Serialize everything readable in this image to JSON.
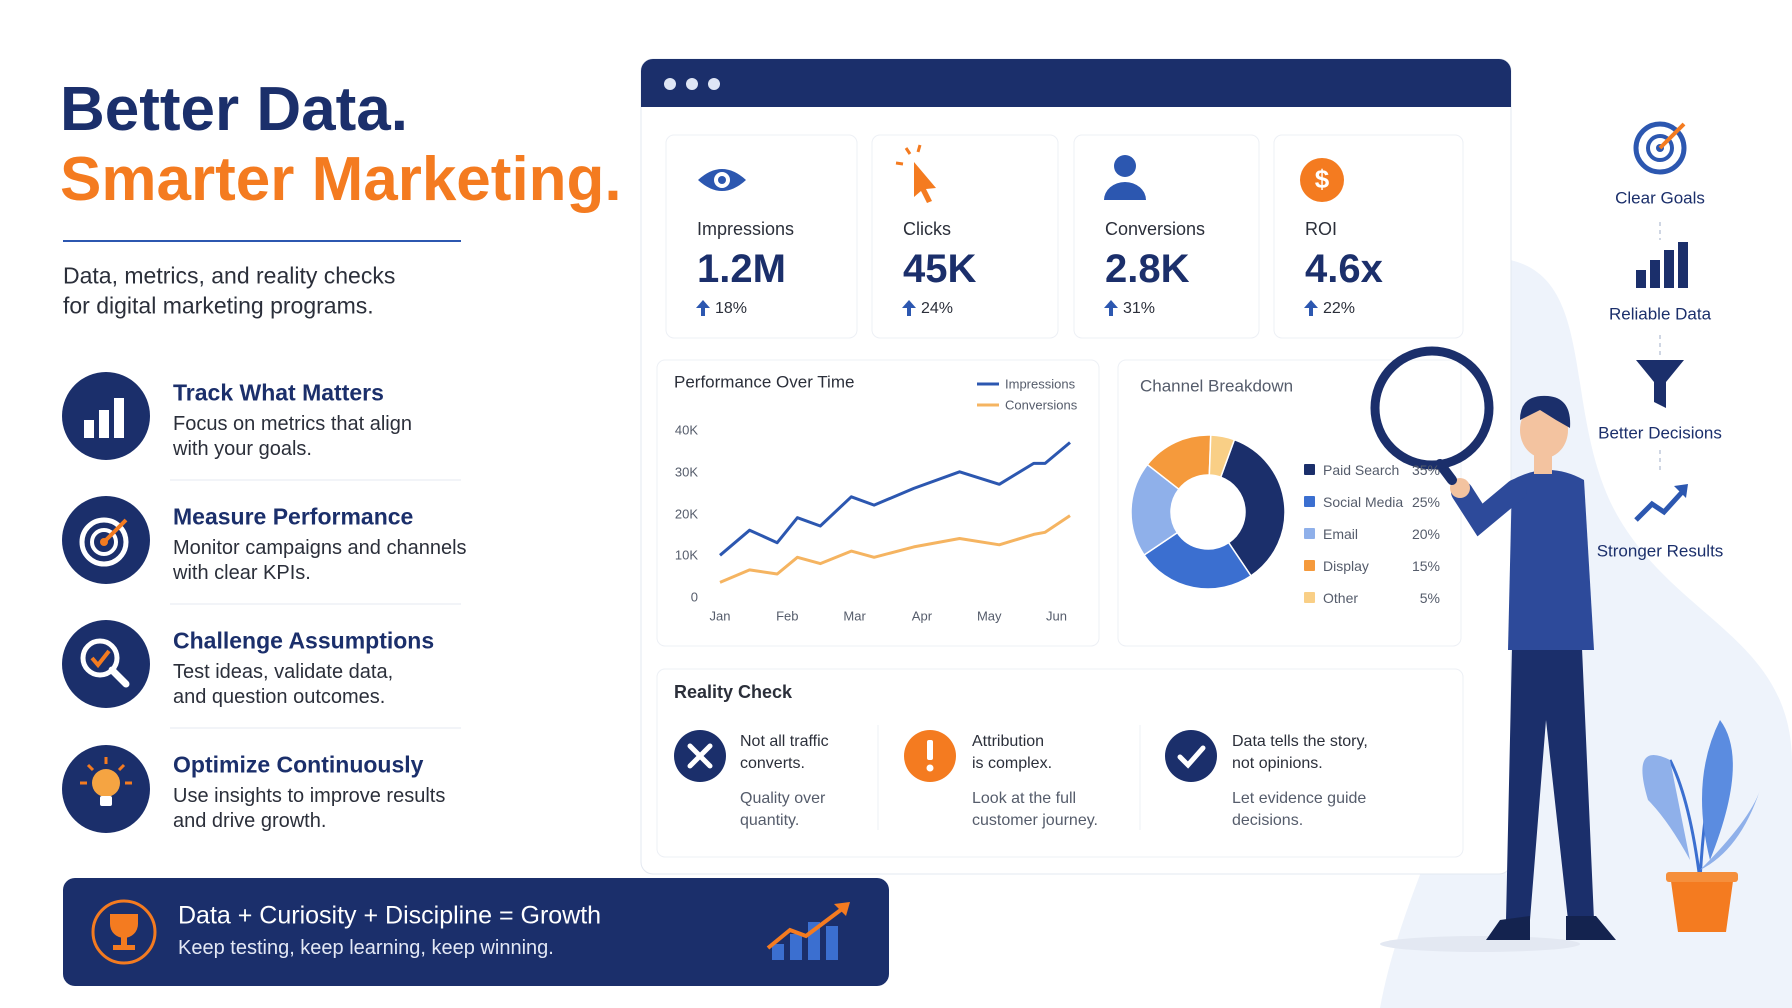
{
  "header": {
    "title_line1": "Better Data.",
    "title_line2": "Smarter Marketing.",
    "subtitle_line1": "Data, metrics, and reality checks",
    "subtitle_line2": "for digital marketing programs."
  },
  "features": [
    {
      "title": "Track What Matters",
      "description_lines": [
        "Focus on metrics that align",
        "with your goals."
      ]
    },
    {
      "title": "Measure Performance",
      "description_lines": [
        "Monitor campaigns and channels",
        "with clear KPIs."
      ]
    },
    {
      "title": "Challenge Assumptions",
      "description_lines": [
        "Test ideas, validate data,",
        "and question outcomes."
      ]
    },
    {
      "title": "Optimize Continuously",
      "description_lines": [
        "Use insights to improve results",
        "and drive growth."
      ]
    }
  ],
  "banner": {
    "title": "Data + Curiosity + Discipline = Growth",
    "subtitle": "Keep testing, keep learning, keep winning."
  },
  "kpis": [
    {
      "label": "Impressions",
      "value": "1.2M",
      "change": "18%"
    },
    {
      "label": "Clicks",
      "value": "45K",
      "change": "24%"
    },
    {
      "label": "Conversions",
      "value": "2.8K",
      "change": "31%"
    },
    {
      "label": "ROI",
      "value": "4.6x",
      "change": "22%"
    }
  ],
  "performance": {
    "type": "line",
    "title": "Performance Over Time",
    "x": [
      0,
      0.44,
      0.85,
      1.15,
      1.49,
      1.95,
      2.29,
      2.88,
      3.56,
      4.15,
      4.66,
      4.83,
      5.2
    ],
    "xlim": [
      0,
      5.2
    ],
    "xticks": [
      {
        "value": 0,
        "label": "Jan"
      },
      {
        "value": 1,
        "label": "Feb"
      },
      {
        "value": 2,
        "label": "Mar"
      },
      {
        "value": 3,
        "label": "Apr"
      },
      {
        "value": 4,
        "label": "May"
      },
      {
        "value": 5,
        "label": "Jun"
      }
    ],
    "ylim": [
      0,
      40000
    ],
    "yticks": [
      0,
      {
        "value": 10000,
        "label": "10K"
      },
      {
        "value": 20000,
        "label": "20K"
      },
      {
        "value": 30000,
        "label": "30K"
      },
      {
        "value": 40000,
        "label": "40K"
      }
    ],
    "series": [
      {
        "name": "Impressions",
        "color": "#2c57b0",
        "values": [
          10000,
          16000,
          13000,
          19000,
          17000,
          24000,
          22000,
          26000,
          30000,
          27000,
          32000,
          32000,
          37000
        ]
      },
      {
        "name": "Conversions",
        "color": "#f5b461",
        "values": [
          3500,
          6500,
          5500,
          9500,
          8000,
          11000,
          9500,
          12000,
          14000,
          12500,
          15000,
          15500,
          19500
        ]
      }
    ]
  },
  "channels": {
    "type": "pie",
    "title": "Channel Breakdown",
    "categories": [
      "Paid Search",
      "Social Media",
      "Email",
      "Display",
      "Other"
    ],
    "values": [
      35,
      25,
      20,
      15,
      5
    ],
    "value_labels": [
      "35%",
      "25%",
      "20%",
      "15%",
      "5%"
    ],
    "colors": [
      "#1b2f6b",
      "#3b6fd0",
      "#8fb0ea",
      "#f59a3c",
      "#f9cf86"
    ]
  },
  "reality_check": {
    "title": "Reality Check",
    "items": [
      {
        "title_lines": [
          "Not all traffic",
          "converts."
        ],
        "note_lines": [
          "Quality over",
          "quantity."
        ]
      },
      {
        "title_lines": [
          "Attribution",
          "is complex."
        ],
        "note_lines": [
          "Look at the full",
          "customer journey."
        ]
      },
      {
        "title_lines": [
          "Data tells the story,",
          "not opinions."
        ],
        "note_lines": [
          "Let evidence guide",
          "decisions."
        ]
      }
    ]
  },
  "principles": [
    "Clear Goals",
    "Reliable Data",
    "Better Decisions",
    "Stronger Results"
  ]
}
